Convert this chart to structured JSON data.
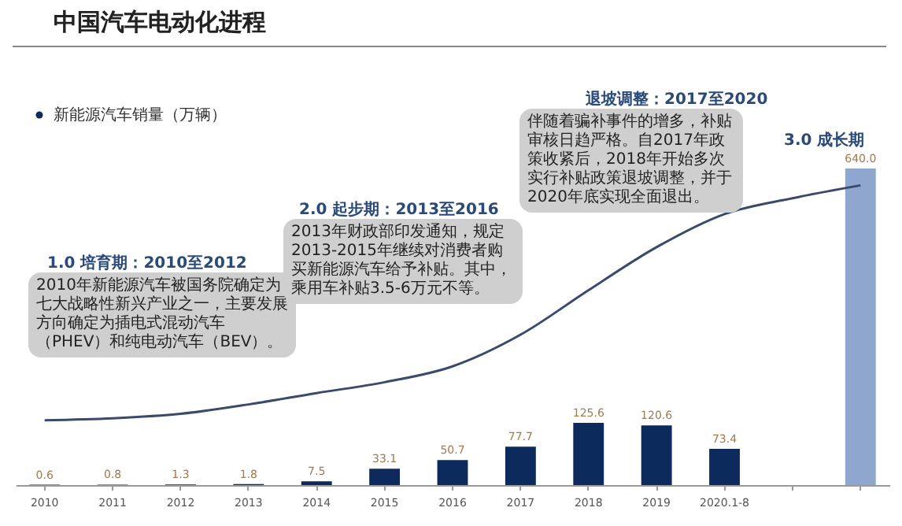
{
  "chart_data": {
    "type": "bar",
    "title": "中国汽车电动化进程",
    "categories": [
      "2010",
      "2011",
      "2012",
      "2013",
      "2014",
      "2015",
      "2016",
      "2017",
      "2018",
      "2019",
      "2020.1-8",
      null,
      null
    ],
    "tick_labels": "x",
    "legend": "top left",
    "grid": false,
    "series": [
      {
        "name": "新能源汽车销量（万辆）",
        "color": "#0d2a5c",
        "colors": [
          "#0d2a5c",
          "#0d2a5c",
          "#0d2a5c",
          "#0d2a5c",
          "#0d2a5c",
          "#0d2a5c",
          "#0d2a5c",
          "#0d2a5c",
          "#0d2a5c",
          "#0d2a5c",
          "#0d2a5c",
          "#0d2a5c",
          "#8fa6cf"
        ],
        "values": [
          0.6,
          0.8,
          1.3,
          1.8,
          7.5,
          33.1,
          50.7,
          77.7,
          125.6,
          120.6,
          73.4,
          null,
          640
        ],
        "value_labels": [
          "0.6",
          "0.8",
          "1.3",
          "1.8",
          "7.5",
          "33.1",
          "50.7",
          "77.7",
          "125.6",
          "120.6",
          "73.4",
          null,
          "640.0"
        ]
      },
      {
        "type": "line",
        "color": "#3a4a6a",
        "values": [
          131,
          135,
          144,
          163,
          186,
          208,
          240,
          304,
          394,
          481,
          548,
          580,
          606
        ]
      }
    ],
    "annotations": [
      "1.0 培育期：2010至2012",
      "2010年新能源汽车被国务院确定为七大战略性新兴产业之一，主要发展方向确定为插电式混动汽车（PHEV）和纯电动汽车（BEV）。",
      "2.0 起步期：2013至2016",
      "2013年财政部印发通知，规定2013-2015年继续对消费者购买新能源汽车给予补贴。其中，乘用车补贴3.5-6万元不等。",
      "退坡调整：2017至2020",
      "伴随着骗补事件的增多，补贴审核日趋严格。自2017年政策收紧后，2018年开始多次实行补贴政策退坡调整，并于2020年底实现全面退出。",
      "3.0 成长期"
    ]
  }
}
